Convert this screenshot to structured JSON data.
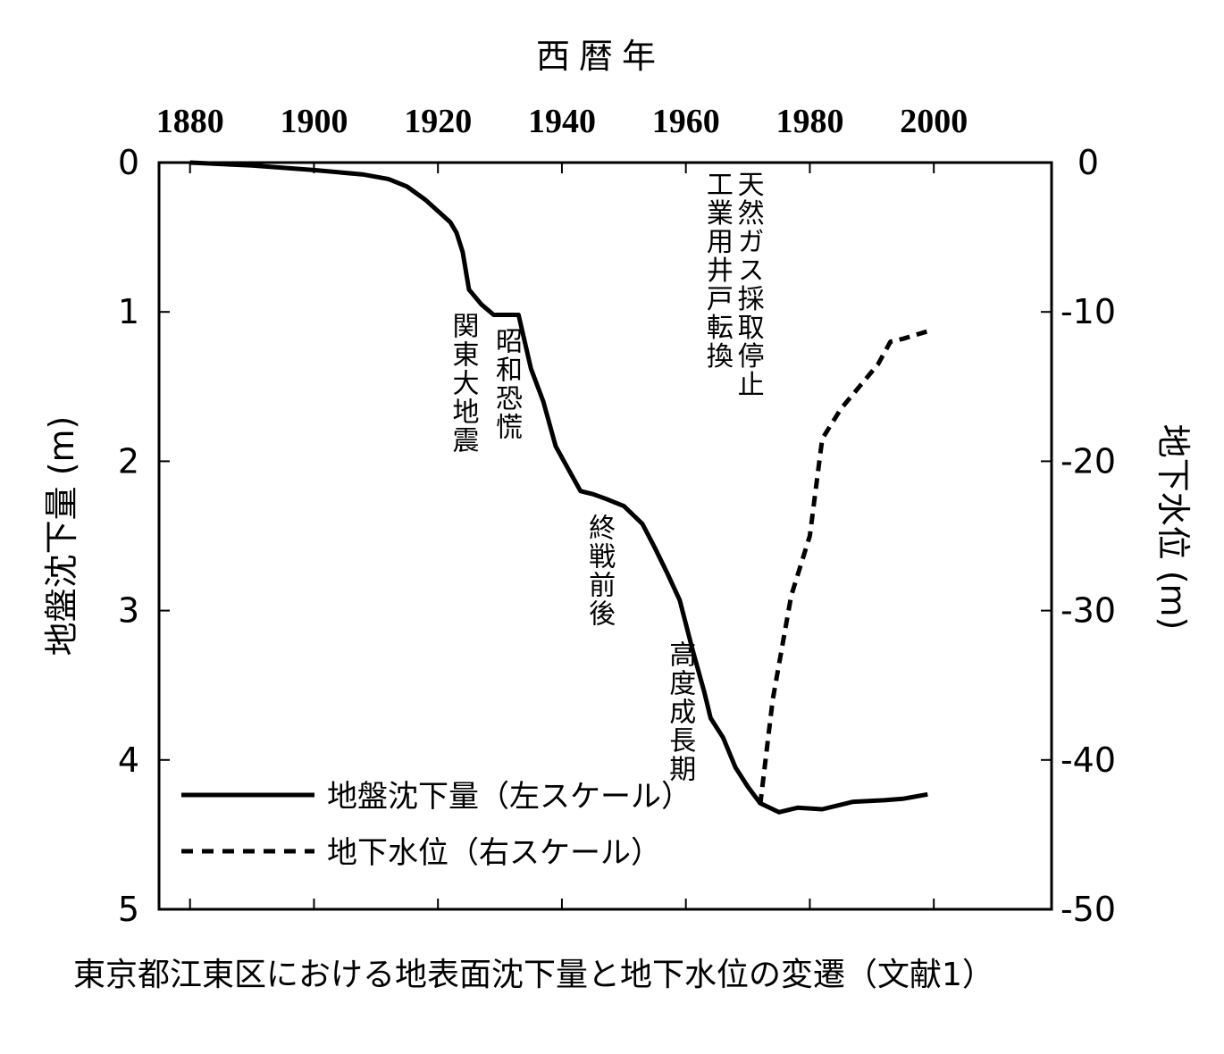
{
  "chart_data": {
    "type": "line",
    "title": "西暦年",
    "caption": "東京都江東区における地表面沈下量と地下水位の変遷（文献1）",
    "x_ticks": [
      1880,
      1900,
      1920,
      1940,
      1960,
      1980,
      2000
    ],
    "xlim": [
      1875,
      2019
    ],
    "y_left_label": "地盤沈下量 (m)",
    "y_left_ticks": [
      0,
      1,
      2,
      3,
      4,
      5
    ],
    "y_left_lim": [
      0,
      5
    ],
    "y_right_label": "地下水位 (m)",
    "y_right_ticks": [
      0,
      -10,
      -20,
      -30,
      -40,
      -50
    ],
    "y_right_lim": [
      0,
      -50
    ],
    "legend_position": "bottom-left",
    "series": [
      {
        "name": "地盤沈下量（左スケール）",
        "axis": "left",
        "style": "solid",
        "points": [
          [
            1880,
            0.0
          ],
          [
            1890,
            0.02
          ],
          [
            1900,
            0.05
          ],
          [
            1908,
            0.08
          ],
          [
            1912,
            0.11
          ],
          [
            1915,
            0.16
          ],
          [
            1918,
            0.25
          ],
          [
            1922,
            0.4
          ],
          [
            1923,
            0.47
          ],
          [
            1924,
            0.6
          ],
          [
            1925,
            0.85
          ],
          [
            1927,
            0.95
          ],
          [
            1929,
            1.02
          ],
          [
            1933,
            1.02
          ],
          [
            1935,
            1.38
          ],
          [
            1937,
            1.6
          ],
          [
            1939,
            1.9
          ],
          [
            1941,
            2.05
          ],
          [
            1943,
            2.2
          ],
          [
            1945,
            2.22
          ],
          [
            1947,
            2.25
          ],
          [
            1950,
            2.3
          ],
          [
            1953,
            2.42
          ],
          [
            1955,
            2.58
          ],
          [
            1957,
            2.75
          ],
          [
            1959,
            2.93
          ],
          [
            1961,
            3.25
          ],
          [
            1963,
            3.55
          ],
          [
            1964,
            3.72
          ],
          [
            1966,
            3.85
          ],
          [
            1968,
            4.05
          ],
          [
            1970,
            4.18
          ],
          [
            1972,
            4.29
          ],
          [
            1975,
            4.35
          ],
          [
            1978,
            4.32
          ],
          [
            1982,
            4.33
          ],
          [
            1987,
            4.28
          ],
          [
            1992,
            4.27
          ],
          [
            1995,
            4.26
          ],
          [
            1999,
            4.23
          ]
        ]
      },
      {
        "name": "地下水位（右スケール）",
        "axis": "right",
        "style": "dashed",
        "points": [
          [
            1972,
            -43
          ],
          [
            1974,
            -36
          ],
          [
            1977,
            -29
          ],
          [
            1980,
            -25
          ],
          [
            1982,
            -18.5
          ],
          [
            1985,
            -16.5
          ],
          [
            1988,
            -15
          ],
          [
            1991,
            -13.5
          ],
          [
            1993,
            -12
          ],
          [
            1995,
            -11.8
          ],
          [
            1999,
            -11.3
          ]
        ]
      }
    ],
    "annotations": [
      {
        "text": "関東大地震",
        "x": 1924,
        "y": 1.0
      },
      {
        "text": "昭和恐慌",
        "x": 1931,
        "y": 1.1
      },
      {
        "text": "終戦前後",
        "x": 1946,
        "y": 2.35
      },
      {
        "text": "高度成長期",
        "x": 1959,
        "y": 3.2
      },
      {
        "text": "工業用井戸転換",
        "x": 1965,
        "y": 0.05
      },
      {
        "text": "天然ガス採取停止",
        "x": 1970,
        "y": 0.05
      }
    ]
  }
}
